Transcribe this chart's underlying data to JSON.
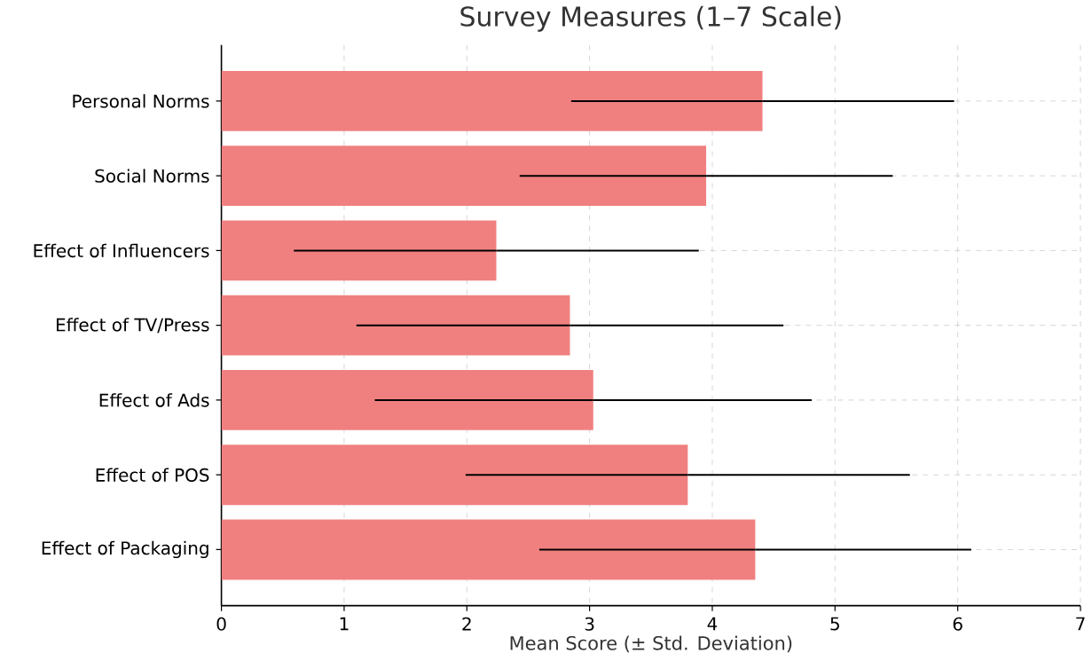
{
  "chart_data": {
    "type": "bar",
    "orientation": "horizontal",
    "title": "Survey Measures (1–7 Scale)",
    "xlabel": "Mean Score (± Std. Deviation)",
    "categories": [
      "Personal Norms",
      "Social Norms",
      "Effect of Influencers",
      "Effect of TV/Press",
      "Effect of Ads",
      "Effect of POS",
      "Effect of Packaging"
    ],
    "values": [
      4.41,
      3.95,
      2.24,
      2.84,
      3.03,
      3.8,
      4.35
    ],
    "errors": [
      1.56,
      1.52,
      1.65,
      1.74,
      1.78,
      1.81,
      1.76
    ],
    "color": "#f08080",
    "xlim": [
      0,
      7
    ],
    "xticks": [
      0,
      1,
      2,
      3,
      4,
      5,
      6,
      7
    ],
    "grid": true
  }
}
